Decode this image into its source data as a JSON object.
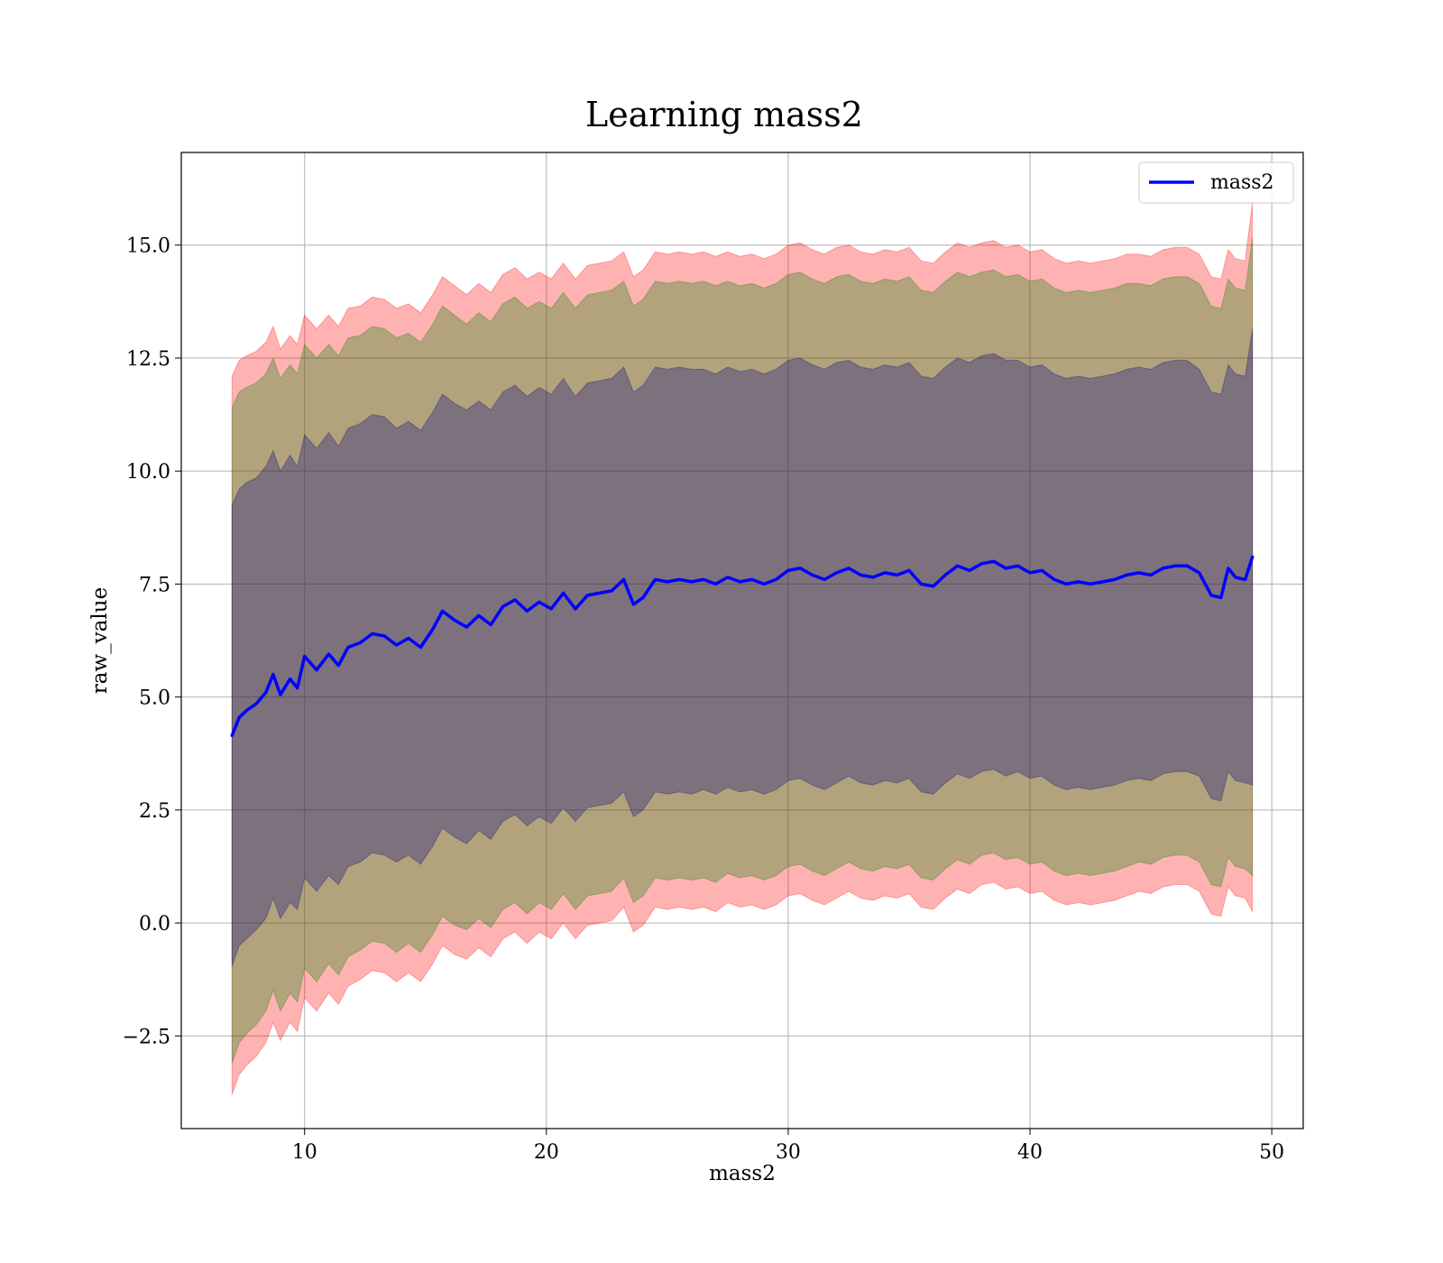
{
  "chart_data": {
    "type": "line",
    "title": "Learning mass2",
    "xlabel": "mass2",
    "ylabel": "raw_value",
    "xlim": [
      4.9,
      51.3
    ],
    "ylim": [
      -4.55,
      17.05
    ],
    "xticks": [
      10,
      20,
      30,
      40,
      50
    ],
    "xtick_labels": [
      "10",
      "20",
      "30",
      "40",
      "50"
    ],
    "yticks": [
      -2.5,
      0.0,
      2.5,
      5.0,
      7.5,
      10.0,
      12.5,
      15.0
    ],
    "ytick_labels": [
      "−2.5",
      "0.0",
      "2.5",
      "5.0",
      "7.5",
      "10.0",
      "12.5",
      "15.0"
    ],
    "grid": true,
    "legend_position": "top-right",
    "series": [
      {
        "name": "mass2",
        "color": "#0000ff",
        "x": [
          7.0,
          7.3,
          7.6,
          8.0,
          8.4,
          8.7,
          9.0,
          9.4,
          9.7,
          10.0,
          10.5,
          11.0,
          11.4,
          11.8,
          12.3,
          12.8,
          13.3,
          13.8,
          14.3,
          14.8,
          15.3,
          15.7,
          16.2,
          16.7,
          17.2,
          17.7,
          18.2,
          18.7,
          19.2,
          19.7,
          20.2,
          20.7,
          21.2,
          21.7,
          22.2,
          22.7,
          23.2,
          23.6,
          24.0,
          24.5,
          25.0,
          25.5,
          26.0,
          26.5,
          27.0,
          27.5,
          28.0,
          28.5,
          29.0,
          29.5,
          30.0,
          30.5,
          31.0,
          31.5,
          32.0,
          32.5,
          33.0,
          33.5,
          34.0,
          34.5,
          35.0,
          35.5,
          36.0,
          36.5,
          37.0,
          37.5,
          38.0,
          38.5,
          39.0,
          39.5,
          40.0,
          40.5,
          41.0,
          41.5,
          42.0,
          42.5,
          43.0,
          43.5,
          44.0,
          44.5,
          45.0,
          45.5,
          46.0,
          46.5,
          47.0,
          47.5,
          47.9,
          48.2,
          48.5,
          48.9,
          49.2
        ],
        "values": [
          4.15,
          4.55,
          4.7,
          4.85,
          5.1,
          5.5,
          5.05,
          5.4,
          5.2,
          5.9,
          5.6,
          5.95,
          5.7,
          6.1,
          6.2,
          6.4,
          6.35,
          6.15,
          6.3,
          6.1,
          6.5,
          6.9,
          6.7,
          6.55,
          6.8,
          6.6,
          7.0,
          7.15,
          6.9,
          7.1,
          6.95,
          7.3,
          6.95,
          7.25,
          7.3,
          7.35,
          7.6,
          7.05,
          7.2,
          7.6,
          7.55,
          7.6,
          7.55,
          7.6,
          7.5,
          7.65,
          7.55,
          7.6,
          7.5,
          7.6,
          7.8,
          7.85,
          7.7,
          7.6,
          7.75,
          7.85,
          7.7,
          7.65,
          7.75,
          7.7,
          7.8,
          7.5,
          7.45,
          7.7,
          7.9,
          7.8,
          7.95,
          8.0,
          7.85,
          7.9,
          7.75,
          7.8,
          7.6,
          7.5,
          7.55,
          7.5,
          7.55,
          7.6,
          7.7,
          7.75,
          7.7,
          7.85,
          7.9,
          7.9,
          7.75,
          7.25,
          7.2,
          7.85,
          7.65,
          7.6,
          8.1
        ]
      }
    ],
    "bands": [
      {
        "sigma": 3,
        "color": "#ff0000",
        "opacity": 0.3,
        "upper_offset": [
          7.95,
          7.9,
          7.85,
          7.8,
          7.75,
          7.7,
          7.65,
          7.6,
          7.6,
          7.55,
          7.55,
          7.5,
          7.5,
          7.5,
          7.45,
          7.45,
          7.45,
          7.45,
          7.4,
          7.4,
          7.4,
          7.4,
          7.4,
          7.35,
          7.35,
          7.35,
          7.35,
          7.35,
          7.35,
          7.3,
          7.3,
          7.3,
          7.3,
          7.3,
          7.3,
          7.3,
          7.25,
          7.25,
          7.25,
          7.25,
          7.25,
          7.25,
          7.25,
          7.25,
          7.25,
          7.2,
          7.2,
          7.2,
          7.2,
          7.2,
          7.2,
          7.2,
          7.2,
          7.2,
          7.2,
          7.15,
          7.15,
          7.15,
          7.15,
          7.15,
          7.15,
          7.15,
          7.15,
          7.15,
          7.15,
          7.15,
          7.1,
          7.1,
          7.1,
          7.1,
          7.1,
          7.1,
          7.1,
          7.1,
          7.1,
          7.1,
          7.1,
          7.1,
          7.1,
          7.05,
          7.05,
          7.05,
          7.05,
          7.05,
          7.05,
          7.05,
          7.05,
          7.05,
          7.05,
          7.05,
          7.85
        ]
      },
      {
        "sigma": 2,
        "color": "#008000",
        "opacity": 0.3,
        "upper_offset": [
          7.25,
          7.2,
          7.15,
          7.1,
          7.05,
          7.0,
          7.0,
          6.95,
          6.95,
          6.9,
          6.9,
          6.85,
          6.85,
          6.85,
          6.8,
          6.8,
          6.8,
          6.8,
          6.75,
          6.75,
          6.75,
          6.75,
          6.75,
          6.7,
          6.7,
          6.7,
          6.7,
          6.7,
          6.7,
          6.65,
          6.65,
          6.65,
          6.65,
          6.65,
          6.65,
          6.65,
          6.6,
          6.6,
          6.6,
          6.6,
          6.6,
          6.6,
          6.6,
          6.6,
          6.6,
          6.55,
          6.55,
          6.55,
          6.55,
          6.55,
          6.55,
          6.55,
          6.55,
          6.55,
          6.55,
          6.5,
          6.5,
          6.5,
          6.5,
          6.5,
          6.5,
          6.5,
          6.5,
          6.5,
          6.5,
          6.5,
          6.45,
          6.45,
          6.45,
          6.45,
          6.45,
          6.45,
          6.45,
          6.45,
          6.45,
          6.45,
          6.45,
          6.45,
          6.45,
          6.4,
          6.4,
          6.4,
          6.4,
          6.4,
          6.4,
          6.4,
          6.4,
          6.4,
          6.4,
          6.4,
          7.05
        ]
      },
      {
        "sigma": 1,
        "color": "#000080",
        "opacity": 0.3,
        "upper_offset": [
          5.1,
          5.05,
          5.05,
          5.0,
          5.0,
          4.95,
          4.95,
          4.95,
          4.9,
          4.9,
          4.9,
          4.9,
          4.85,
          4.85,
          4.85,
          4.85,
          4.85,
          4.8,
          4.8,
          4.8,
          4.8,
          4.8,
          4.8,
          4.8,
          4.75,
          4.75,
          4.75,
          4.75,
          4.75,
          4.75,
          4.75,
          4.75,
          4.7,
          4.7,
          4.7,
          4.7,
          4.7,
          4.7,
          4.7,
          4.7,
          4.7,
          4.7,
          4.7,
          4.65,
          4.65,
          4.65,
          4.65,
          4.65,
          4.65,
          4.65,
          4.65,
          4.65,
          4.65,
          4.65,
          4.65,
          4.6,
          4.6,
          4.6,
          4.6,
          4.6,
          4.6,
          4.6,
          4.6,
          4.6,
          4.6,
          4.6,
          4.6,
          4.6,
          4.6,
          4.55,
          4.55,
          4.55,
          4.55,
          4.55,
          4.55,
          4.55,
          4.55,
          4.55,
          4.55,
          4.55,
          4.55,
          4.55,
          4.55,
          4.55,
          4.5,
          4.5,
          4.5,
          4.5,
          4.5,
          4.5,
          5.05
        ]
      }
    ]
  }
}
